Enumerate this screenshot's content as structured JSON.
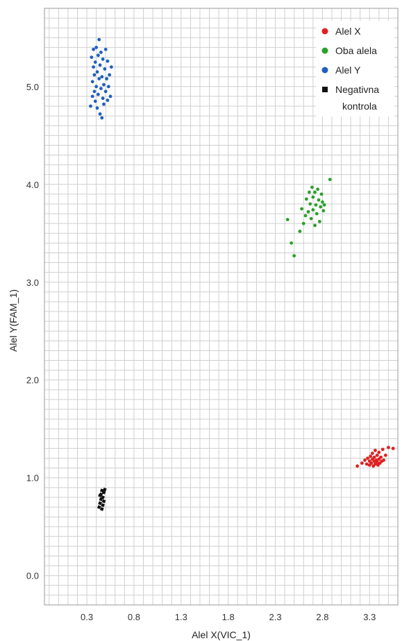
{
  "chart_data": {
    "type": "scatter",
    "xlabel": "Alel X(VIC_1)",
    "ylabel": "Alel Y(FAM_1)",
    "xlim": [
      -0.15,
      3.6
    ],
    "ylim": [
      -0.3,
      5.8
    ],
    "x_ticks": [
      0.3,
      0.8,
      1.3,
      1.8,
      2.3,
      2.8,
      3.3
    ],
    "x_tick_labels": [
      "0.3",
      "0.8",
      "1.3",
      "1.8",
      "2.3",
      "2.8",
      "3.3"
    ],
    "y_ticks": [
      0.0,
      1.0,
      2.0,
      3.0,
      4.0,
      5.0
    ],
    "y_tick_labels": [
      "0.0",
      "1.0",
      "2.0",
      "3.0",
      "4.0",
      "5.0"
    ],
    "grid": true,
    "legend_position": "top-right",
    "series": [
      {
        "name": "Alel X",
        "color": "#e02020",
        "marker": "circle",
        "points": [
          [
            3.17,
            1.12
          ],
          [
            3.22,
            1.15
          ],
          [
            3.25,
            1.18
          ],
          [
            3.27,
            1.14
          ],
          [
            3.28,
            1.2
          ],
          [
            3.3,
            1.13
          ],
          [
            3.3,
            1.17
          ],
          [
            3.31,
            1.22
          ],
          [
            3.32,
            1.15
          ],
          [
            3.33,
            1.19
          ],
          [
            3.33,
            1.25
          ],
          [
            3.34,
            1.12
          ],
          [
            3.35,
            1.17
          ],
          [
            3.35,
            1.21
          ],
          [
            3.36,
            1.14
          ],
          [
            3.36,
            1.28
          ],
          [
            3.37,
            1.18
          ],
          [
            3.38,
            1.16
          ],
          [
            3.38,
            1.23
          ],
          [
            3.39,
            1.13
          ],
          [
            3.4,
            1.19
          ],
          [
            3.4,
            1.26
          ],
          [
            3.41,
            1.15
          ],
          [
            3.42,
            1.21
          ],
          [
            3.43,
            1.17
          ],
          [
            3.44,
            1.29
          ],
          [
            3.45,
            1.18
          ],
          [
            3.47,
            1.23
          ],
          [
            3.5,
            1.31
          ],
          [
            3.55,
            1.3
          ]
        ]
      },
      {
        "name": "Oba alela",
        "color": "#2aa02a",
        "marker": "circle",
        "points": [
          [
            2.43,
            3.64
          ],
          [
            2.47,
            3.4
          ],
          [
            2.5,
            3.27
          ],
          [
            2.56,
            3.52
          ],
          [
            2.58,
            3.75
          ],
          [
            2.6,
            3.6
          ],
          [
            2.62,
            3.68
          ],
          [
            2.63,
            3.85
          ],
          [
            2.65,
            3.72
          ],
          [
            2.66,
            3.92
          ],
          [
            2.67,
            3.8
          ],
          [
            2.68,
            3.65
          ],
          [
            2.69,
            3.97
          ],
          [
            2.7,
            3.74
          ],
          [
            2.7,
            3.87
          ],
          [
            2.72,
            3.58
          ],
          [
            2.72,
            3.92
          ],
          [
            2.73,
            3.79
          ],
          [
            2.74,
            3.7
          ],
          [
            2.75,
            3.95
          ],
          [
            2.76,
            3.84
          ],
          [
            2.77,
            3.62
          ],
          [
            2.78,
            3.77
          ],
          [
            2.79,
            3.9
          ],
          [
            2.8,
            3.82
          ],
          [
            2.81,
            3.73
          ],
          [
            2.82,
            3.79
          ],
          [
            2.88,
            4.05
          ]
        ]
      },
      {
        "name": "Alel Y",
        "color": "#1f5fbf",
        "marker": "circle",
        "points": [
          [
            0.34,
            4.8
          ],
          [
            0.35,
            5.3
          ],
          [
            0.36,
            5.05
          ],
          [
            0.36,
            4.9
          ],
          [
            0.37,
            5.2
          ],
          [
            0.37,
            5.38
          ],
          [
            0.38,
            4.95
          ],
          [
            0.38,
            5.12
          ],
          [
            0.39,
            4.85
          ],
          [
            0.39,
            5.25
          ],
          [
            0.4,
            5.0
          ],
          [
            0.4,
            5.4
          ],
          [
            0.41,
            4.78
          ],
          [
            0.41,
            5.15
          ],
          [
            0.42,
            5.32
          ],
          [
            0.42,
            4.92
          ],
          [
            0.43,
            5.48
          ],
          [
            0.43,
            5.08
          ],
          [
            0.44,
            4.72
          ],
          [
            0.44,
            5.22
          ],
          [
            0.45,
            4.98
          ],
          [
            0.45,
            5.35
          ],
          [
            0.46,
            4.68
          ],
          [
            0.46,
            5.1
          ],
          [
            0.47,
            4.88
          ],
          [
            0.47,
            5.28
          ],
          [
            0.48,
            5.02
          ],
          [
            0.48,
            4.82
          ],
          [
            0.49,
            5.18
          ],
          [
            0.5,
            4.95
          ],
          [
            0.5,
            5.38
          ],
          [
            0.51,
            5.08
          ],
          [
            0.52,
            4.86
          ],
          [
            0.52,
            5.26
          ],
          [
            0.53,
            5.0
          ],
          [
            0.54,
            5.12
          ],
          [
            0.55,
            4.9
          ],
          [
            0.56,
            5.2
          ]
        ]
      },
      {
        "name": "Negativna kontrola",
        "legend_lines": [
          "Negativna",
          "kontrola"
        ],
        "color": "#111111",
        "marker": "square",
        "points": [
          [
            0.43,
            0.7
          ],
          [
            0.44,
            0.74
          ],
          [
            0.45,
            0.78
          ],
          [
            0.45,
            0.83
          ],
          [
            0.46,
            0.87
          ],
          [
            0.47,
            0.72
          ],
          [
            0.47,
            0.8
          ],
          [
            0.48,
            0.85
          ],
          [
            0.48,
            0.76
          ],
          [
            0.49,
            0.88
          ],
          [
            0.44,
            0.82
          ],
          [
            0.46,
            0.68
          ]
        ]
      }
    ]
  }
}
